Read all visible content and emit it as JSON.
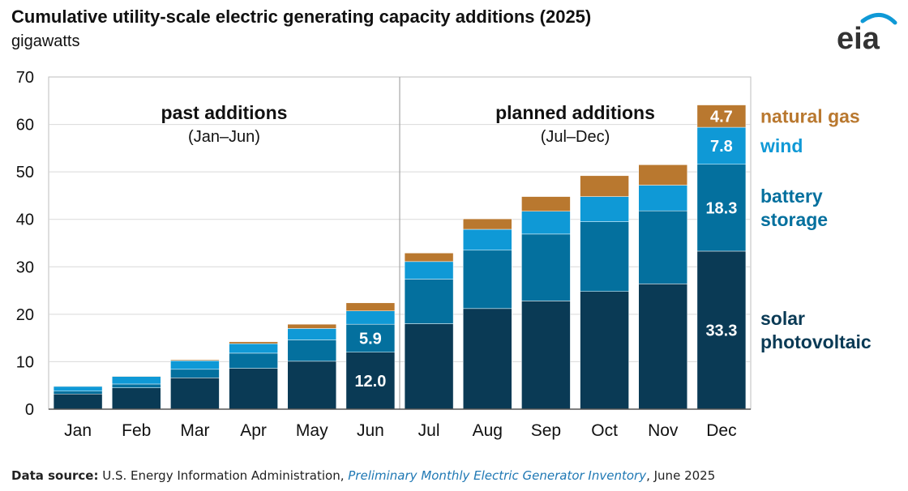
{
  "chart_data": {
    "type": "stacked-bar",
    "title": "Cumulative utility-scale electric generating capacity additions (2025)",
    "ylabel": "gigawatts",
    "ylim": [
      0,
      70
    ],
    "yticks": [
      "0",
      "10",
      "20",
      "30",
      "40",
      "50",
      "60",
      "70"
    ],
    "categories": [
      "Jan",
      "Feb",
      "Mar",
      "Apr",
      "May",
      "Jun",
      "Jul",
      "Aug",
      "Sep",
      "Oct",
      "Nov",
      "Dec"
    ],
    "series": [
      {
        "name": "solar photovoltaic",
        "color": "#0a3a55",
        "values": [
          3.2,
          4.5,
          6.6,
          8.6,
          10.1,
          12.0,
          18.0,
          21.2,
          22.8,
          24.8,
          26.4,
          33.3
        ]
      },
      {
        "name": "battery storage",
        "color": "#04709e",
        "values": [
          0.6,
          0.8,
          1.8,
          3.2,
          4.5,
          5.9,
          9.4,
          12.3,
          14.1,
          14.7,
          15.4,
          18.3
        ]
      },
      {
        "name": "wind",
        "color": "#0f99d6",
        "values": [
          1.0,
          1.6,
          1.8,
          2.0,
          2.4,
          2.8,
          3.7,
          4.4,
          4.8,
          5.3,
          5.4,
          7.8
        ]
      },
      {
        "name": "natural gas",
        "color": "#b9782f",
        "values": [
          0.1,
          0.1,
          0.2,
          0.4,
          0.9,
          1.7,
          1.8,
          2.2,
          3.1,
          4.4,
          4.3,
          4.7
        ]
      }
    ],
    "data_labels": [
      {
        "category": "Jun",
        "series": "solar photovoltaic",
        "text": "12.0"
      },
      {
        "category": "Jun",
        "series": "battery storage",
        "text": "5.9"
      },
      {
        "category": "Dec",
        "series": "solar photovoltaic",
        "text": "33.3"
      },
      {
        "category": "Dec",
        "series": "battery storage",
        "text": "18.3"
      },
      {
        "category": "Dec",
        "series": "wind",
        "text": "7.8"
      },
      {
        "category": "Dec",
        "series": "natural gas",
        "text": "4.7"
      }
    ],
    "legend": [
      {
        "series": "natural gas",
        "lines": [
          "natural gas"
        ]
      },
      {
        "series": "wind",
        "lines": [
          "wind"
        ]
      },
      {
        "series": "battery storage",
        "lines": [
          "battery",
          "storage"
        ]
      },
      {
        "series": "solar photovoltaic",
        "lines": [
          "solar",
          "photovoltaic"
        ]
      }
    ],
    "panels": [
      {
        "title": "past additions",
        "subtitle": "(Jan–Jun)"
      },
      {
        "title": "planned additions",
        "subtitle": "(Jul–Dec)"
      }
    ],
    "divider_after": "Jun",
    "legend_placement": "right",
    "grid": true
  },
  "logo": {
    "text": "eia",
    "color": "#333333",
    "swoosh_color": "#0f99d6"
  },
  "source": {
    "label": "Data source:",
    "agency": "U.S. Energy Information Administration,",
    "publication": "Preliminary Monthly Electric Generator Inventory",
    "date": ", June 2025"
  }
}
